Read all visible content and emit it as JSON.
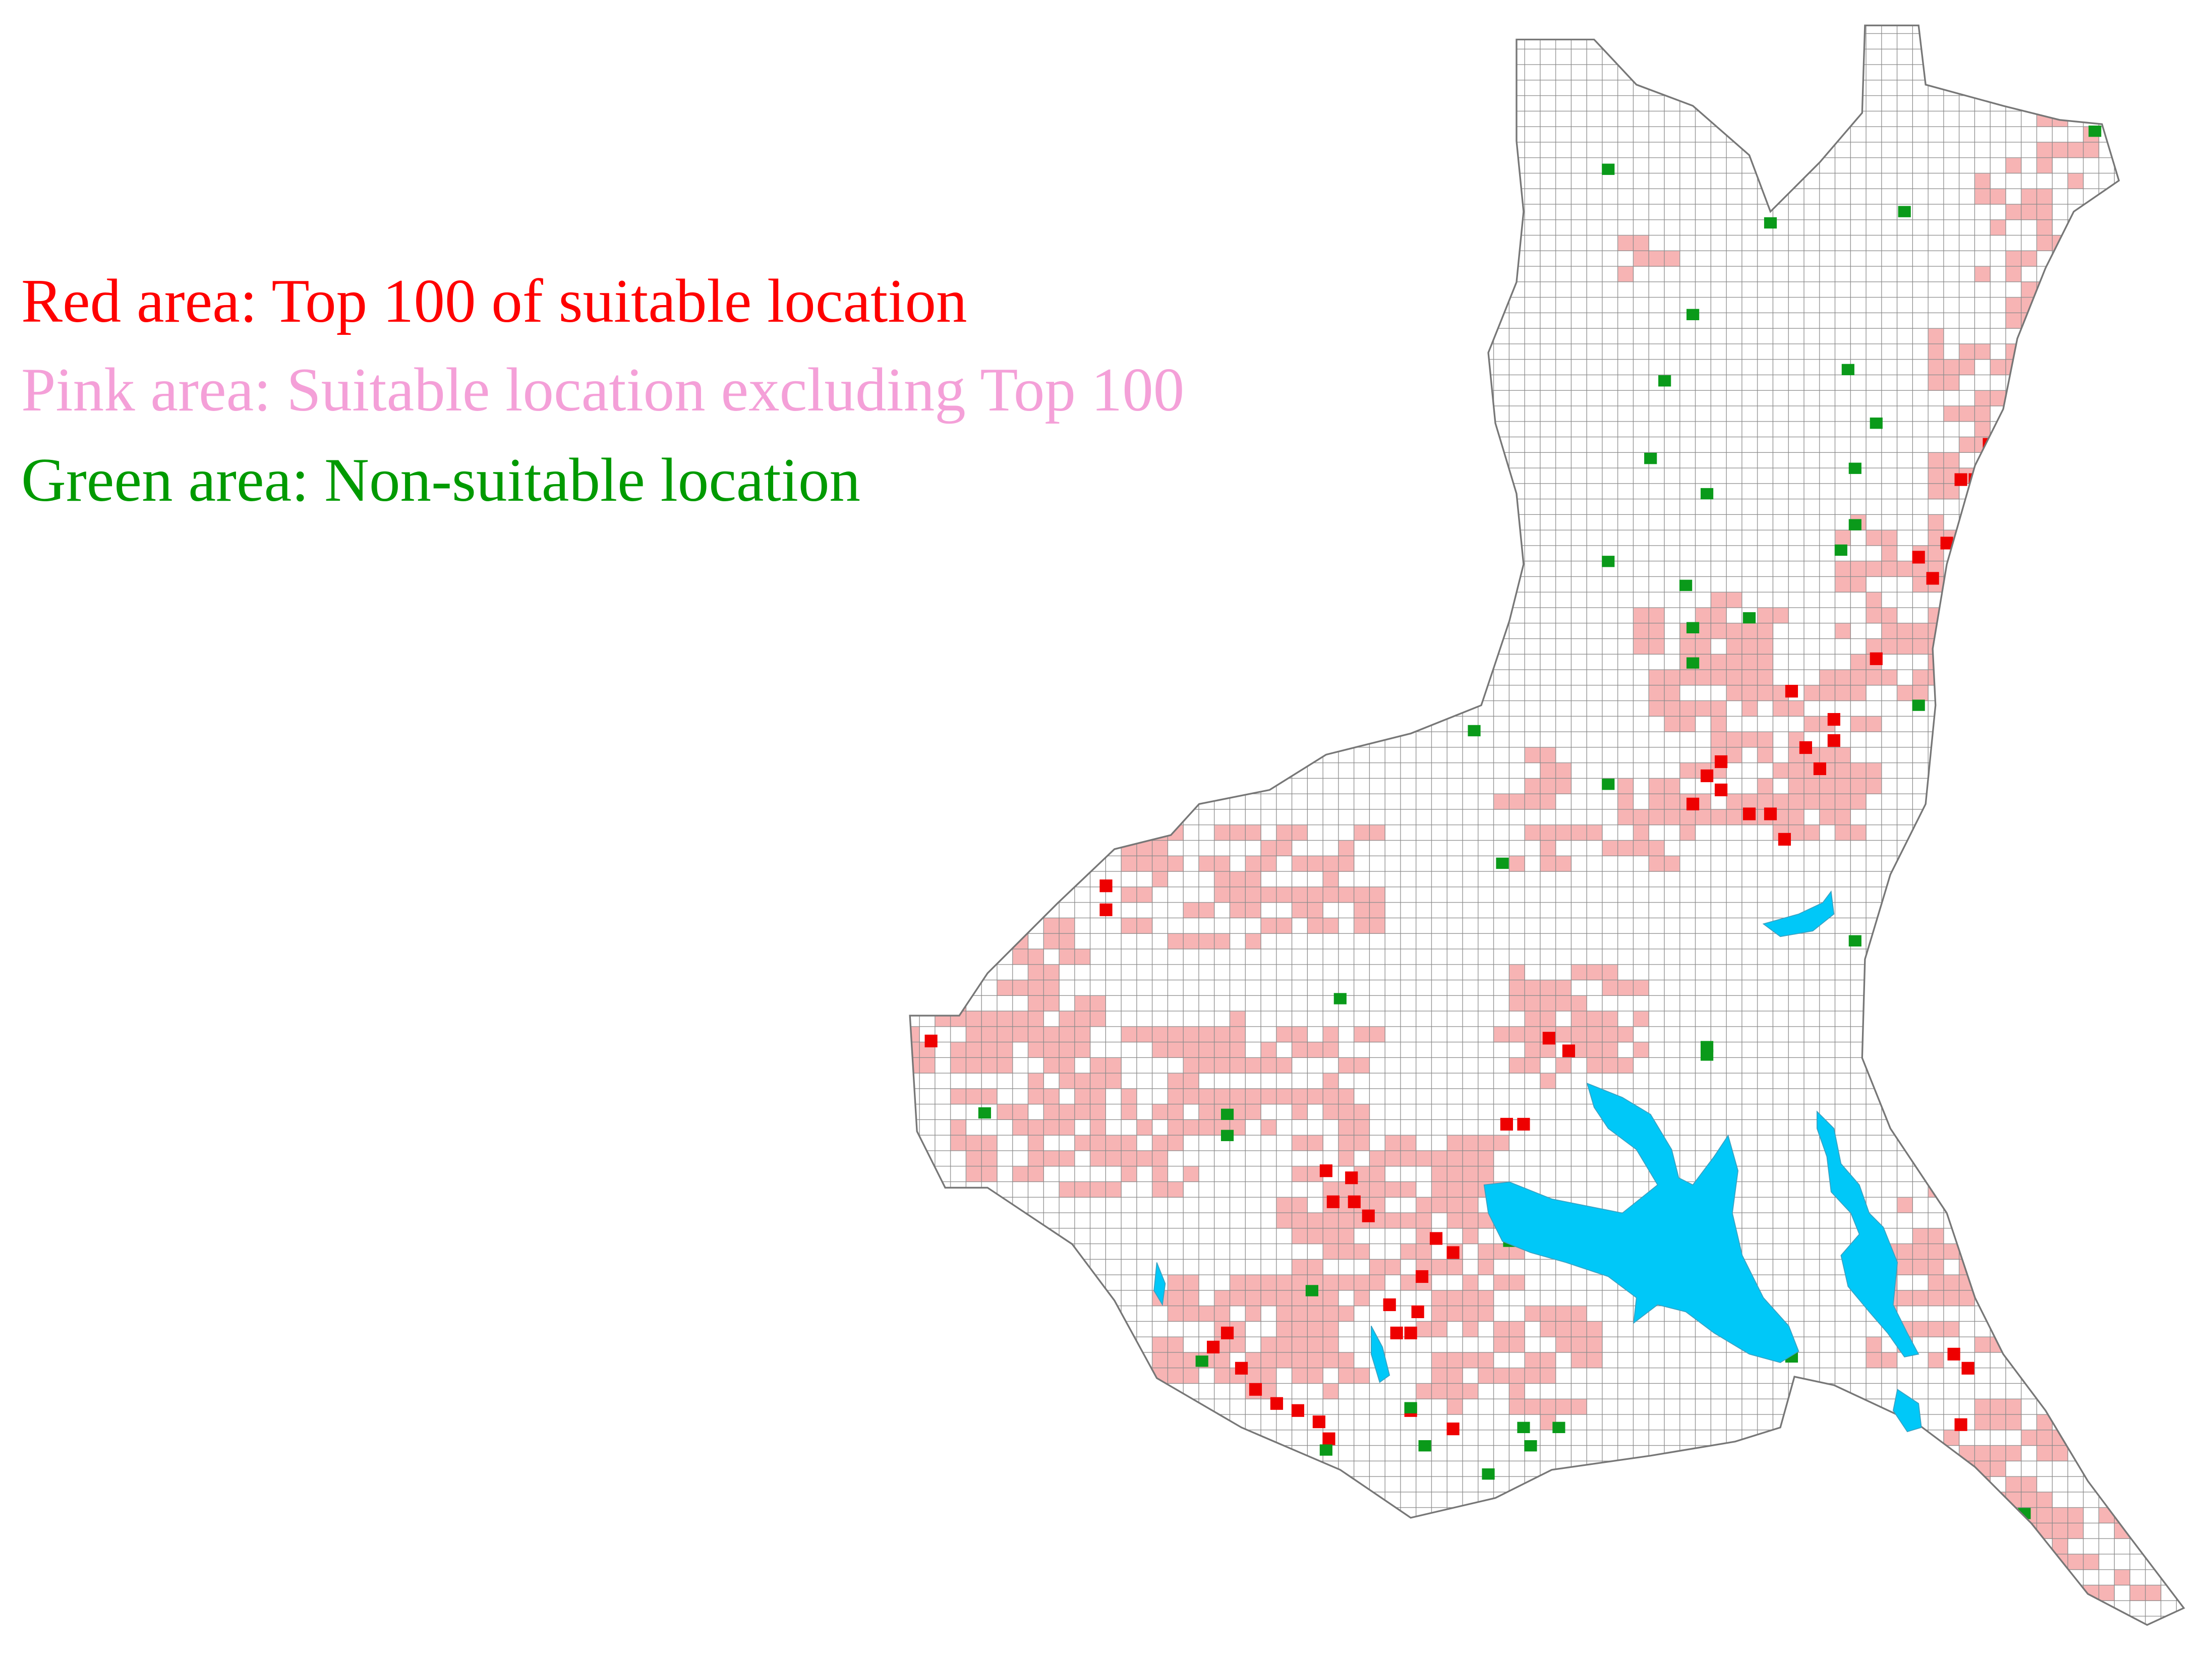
{
  "legend": {
    "red": "Red area: Top 100 of suitable location",
    "pink": "Pink area: Suitable location excluding Top 100",
    "green": "Green area: Non-suitable location"
  }
}
